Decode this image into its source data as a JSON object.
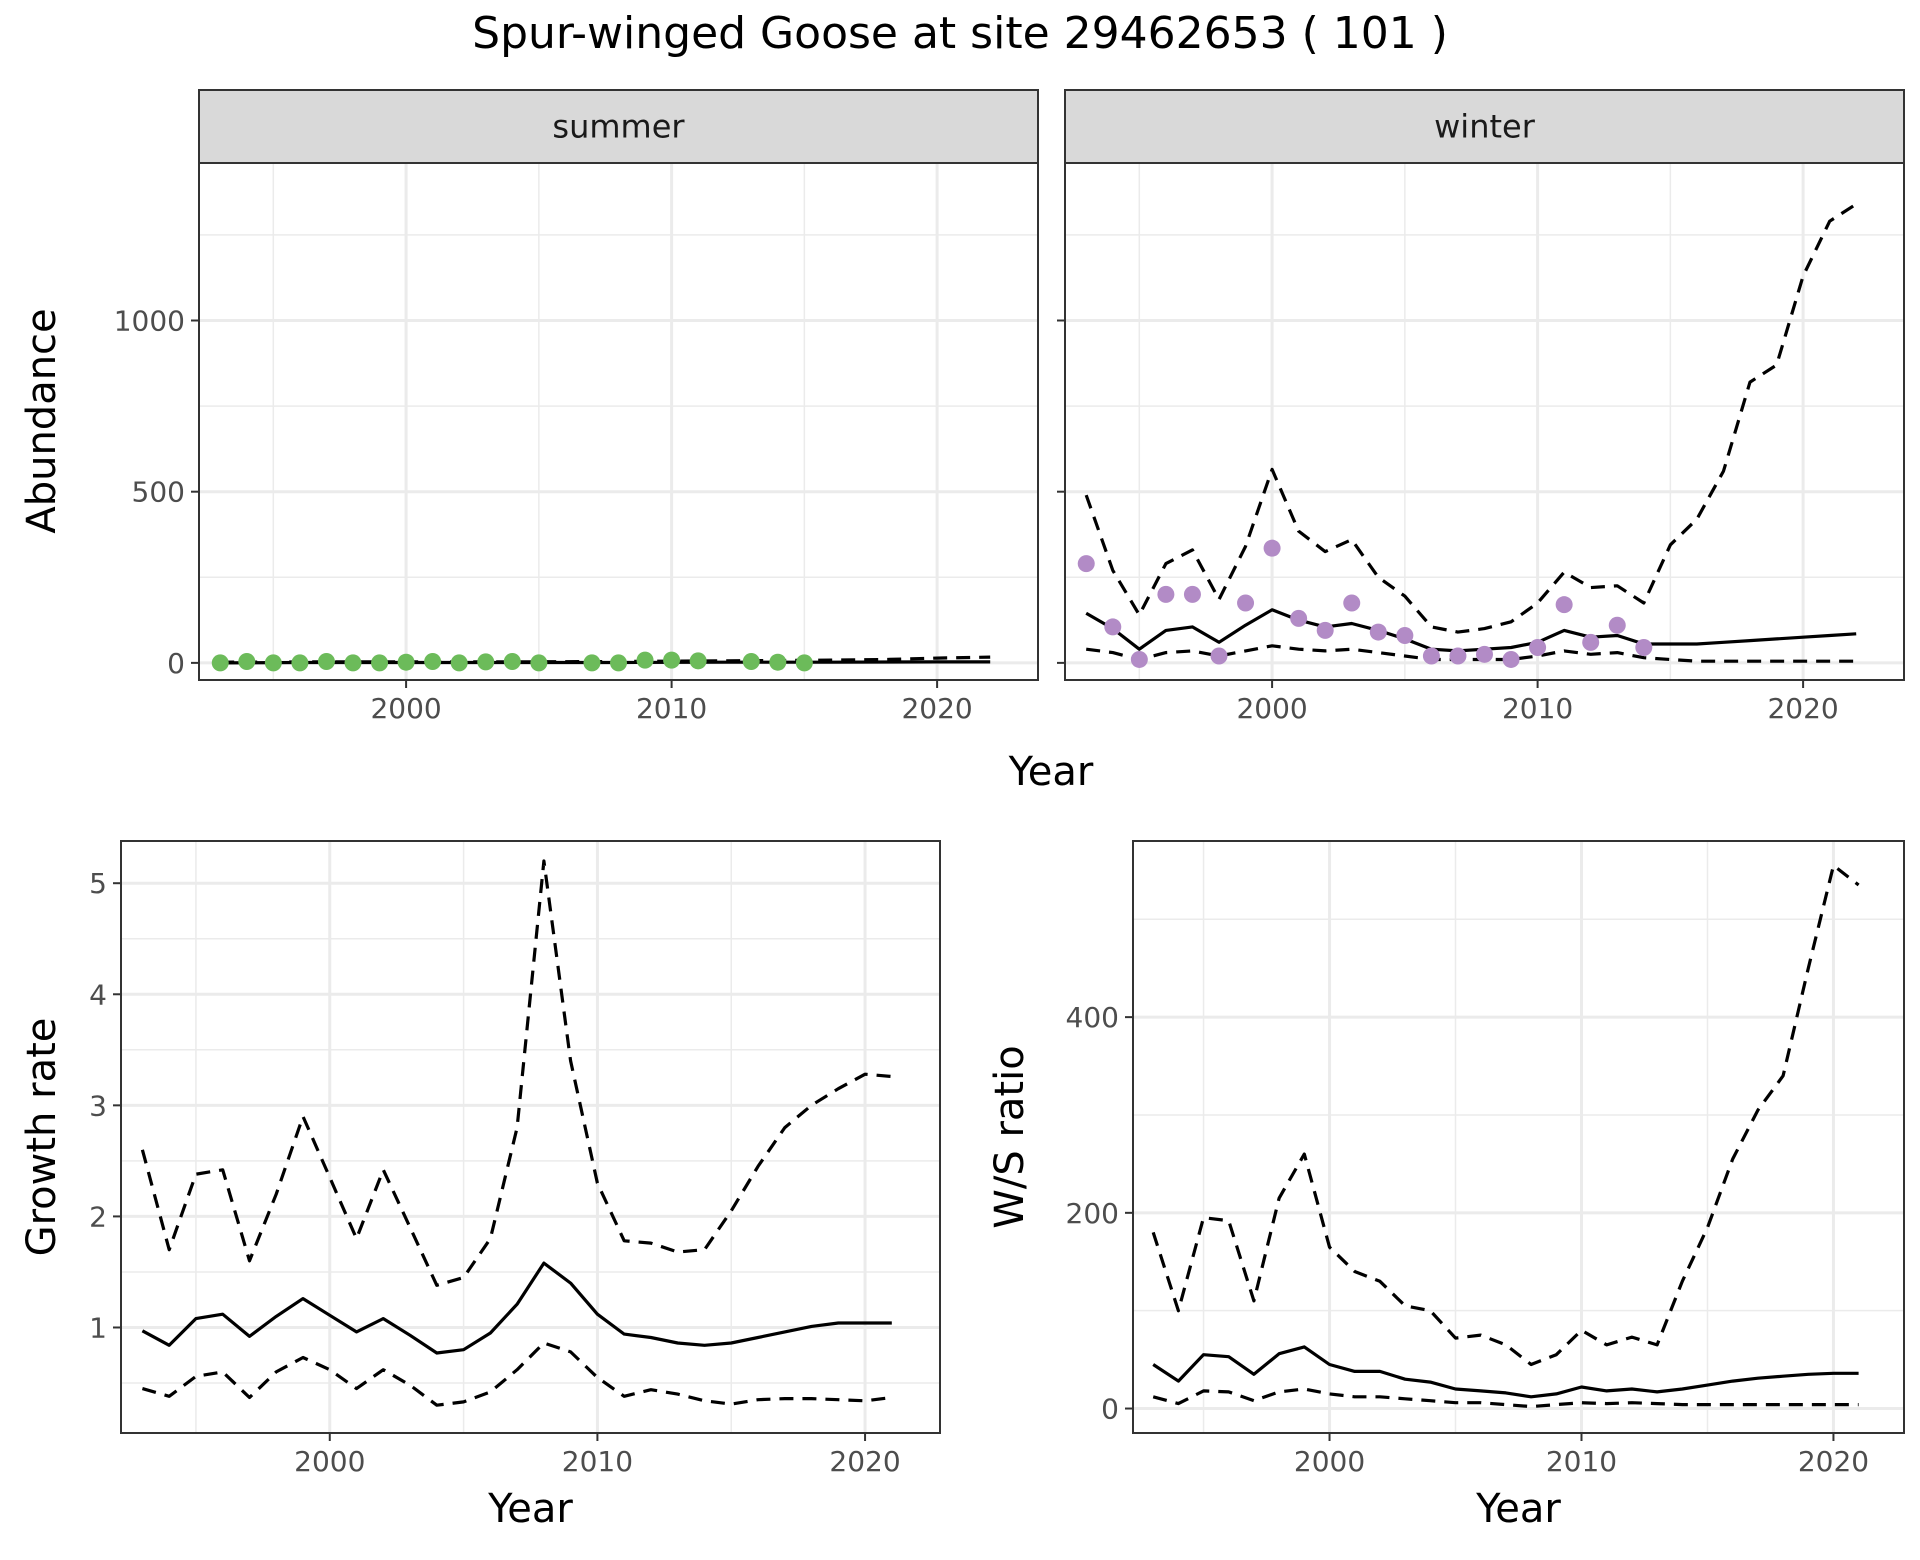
{
  "title": "Spur-winged Goose at site 29462653 ( 101 )",
  "colors": {
    "summer_points": "#6cbb5a",
    "winter_points": "#b28bc6",
    "line": "#000000",
    "strip_fill": "#d9d9d9",
    "grid": "#ebebeb"
  },
  "chart_data": [
    {
      "id": "summer",
      "type": "line",
      "facet_label": "summer",
      "ylabel": "Abundance",
      "xlabel": "",
      "xlim": [
        1992.2,
        2023.8
      ],
      "ylim": [
        -50,
        1460
      ],
      "x_ticks": [
        2000,
        2010,
        2020
      ],
      "y_ticks": [
        0,
        500,
        1000
      ],
      "y_tick_labels": true,
      "grid": true,
      "points": {
        "x": [
          1993,
          1994,
          1995,
          1996,
          1997,
          1998,
          1999,
          2000,
          2001,
          2002,
          2003,
          2004,
          2005,
          2007,
          2008,
          2009,
          2010,
          2011,
          2013,
          2014,
          2015
        ],
        "y": [
          0,
          4,
          0,
          0,
          4,
          0,
          0,
          2,
          4,
          0,
          3,
          4,
          0,
          0,
          0,
          8,
          8,
          6,
          4,
          2,
          0
        ]
      },
      "series": [
        {
          "style": "solid",
          "x": [
            1993,
            1996,
            2000,
            2004,
            2008,
            2012,
            2016,
            2020,
            2022
          ],
          "y": [
            0,
            1,
            1,
            1,
            1,
            2,
            2,
            3,
            3
          ]
        },
        {
          "style": "dashed",
          "x": [
            1993,
            1996,
            2000,
            2004,
            2008,
            2010,
            2012,
            2014,
            2016,
            2018,
            2020,
            2022
          ],
          "y": [
            2,
            3,
            3,
            3,
            4,
            5,
            6,
            7,
            8,
            10,
            14,
            17
          ]
        }
      ]
    },
    {
      "id": "winter",
      "type": "line",
      "facet_label": "winter",
      "ylabel": "",
      "xlabel": "",
      "xlim": [
        1992.2,
        2023.8
      ],
      "ylim": [
        -50,
        1460
      ],
      "x_ticks": [
        2000,
        2010,
        2020
      ],
      "y_ticks": [
        0,
        500,
        1000
      ],
      "y_tick_labels": false,
      "grid": true,
      "points": {
        "x": [
          1993,
          1994,
          1995,
          1996,
          1997,
          1998,
          1999,
          2000,
          2001,
          2002,
          2003,
          2004,
          2005,
          2006,
          2007,
          2008,
          2009,
          2010,
          2011,
          2012,
          2013,
          2014
        ],
        "y": [
          290,
          105,
          10,
          200,
          200,
          20,
          175,
          335,
          130,
          95,
          175,
          90,
          80,
          20,
          20,
          25,
          10,
          45,
          170,
          60,
          110,
          45
        ]
      },
      "series": [
        {
          "style": "solid",
          "x": [
            1993,
            1994,
            1995,
            1996,
            1997,
            1998,
            1999,
            2000,
            2001,
            2002,
            2003,
            2004,
            2005,
            2006,
            2007,
            2008,
            2009,
            2010,
            2011,
            2012,
            2013,
            2014,
            2015,
            2016,
            2017,
            2018,
            2019,
            2020,
            2021,
            2022
          ],
          "y": [
            145,
            100,
            40,
            95,
            105,
            60,
            110,
            155,
            125,
            105,
            115,
            95,
            70,
            40,
            35,
            40,
            45,
            60,
            95,
            75,
            80,
            55,
            55,
            55,
            60,
            65,
            70,
            75,
            80,
            85
          ]
        },
        {
          "style": "dashed",
          "x": [
            1993,
            1994,
            1995,
            1996,
            1997,
            1998,
            1999,
            2000,
            2001,
            2002,
            2003,
            2004,
            2005,
            2006,
            2007,
            2008,
            2009,
            2010,
            2011,
            2012,
            2013,
            2014,
            2015,
            2016,
            2017,
            2018,
            2019,
            2020,
            2021,
            2022
          ],
          "y": [
            490,
            270,
            140,
            290,
            330,
            185,
            340,
            565,
            385,
            325,
            360,
            250,
            195,
            105,
            90,
            100,
            120,
            175,
            265,
            220,
            225,
            175,
            345,
            420,
            560,
            820,
            870,
            1130,
            1290,
            1340
          ]
        },
        {
          "style": "dashed",
          "x": [
            1993,
            1994,
            1995,
            1996,
            1997,
            1998,
            1999,
            2000,
            2001,
            2002,
            2003,
            2004,
            2005,
            2006,
            2007,
            2008,
            2009,
            2010,
            2011,
            2012,
            2013,
            2014,
            2015,
            2016,
            2017,
            2018,
            2019,
            2020,
            2021,
            2022
          ],
          "y": [
            40,
            30,
            10,
            30,
            35,
            20,
            35,
            50,
            40,
            35,
            40,
            30,
            20,
            10,
            10,
            10,
            10,
            20,
            35,
            25,
            30,
            15,
            10,
            5,
            5,
            5,
            5,
            5,
            5,
            5
          ]
        }
      ]
    },
    {
      "id": "growth",
      "type": "line",
      "ylabel": "Growth rate",
      "xlabel": "Year",
      "xlim": [
        1992.2,
        2022.8
      ],
      "ylim": [
        0.05,
        5.38
      ],
      "x_ticks": [
        2000,
        2010,
        2020
      ],
      "y_ticks": [
        1,
        2,
        3,
        4,
        5
      ],
      "y_tick_labels": true,
      "grid": true,
      "series": [
        {
          "style": "solid",
          "x": [
            1993,
            1994,
            1995,
            1996,
            1997,
            1998,
            1999,
            2000,
            2001,
            2002,
            2003,
            2004,
            2005,
            2006,
            2007,
            2008,
            2009,
            2010,
            2011,
            2012,
            2013,
            2014,
            2015,
            2016,
            2017,
            2018,
            2019,
            2020,
            2021
          ],
          "y": [
            0.97,
            0.84,
            1.08,
            1.12,
            0.92,
            1.1,
            1.26,
            1.11,
            0.96,
            1.08,
            0.93,
            0.77,
            0.8,
            0.95,
            1.21,
            1.58,
            1.4,
            1.12,
            0.94,
            0.91,
            0.86,
            0.84,
            0.86,
            0.91,
            0.96,
            1.01,
            1.04,
            1.04,
            1.04
          ]
        },
        {
          "style": "dashed",
          "x": [
            1993,
            1994,
            1995,
            1996,
            1997,
            1998,
            1999,
            2000,
            2001,
            2002,
            2003,
            2004,
            2005,
            2006,
            2007,
            2008,
            2009,
            2010,
            2011,
            2012,
            2013,
            2014,
            2015,
            2016,
            2017,
            2018,
            2019,
            2020,
            2021
          ],
          "y": [
            2.6,
            1.7,
            2.38,
            2.42,
            1.6,
            2.2,
            2.9,
            2.35,
            1.8,
            2.42,
            1.9,
            1.38,
            1.45,
            1.8,
            2.8,
            5.2,
            3.4,
            2.3,
            1.78,
            1.76,
            1.68,
            1.7,
            2.05,
            2.45,
            2.8,
            3.0,
            3.15,
            3.28,
            3.26
          ]
        },
        {
          "style": "dashed",
          "x": [
            1993,
            1994,
            1995,
            1996,
            1997,
            1998,
            1999,
            2000,
            2001,
            2002,
            2003,
            2004,
            2005,
            2006,
            2007,
            2008,
            2009,
            2010,
            2011,
            2012,
            2013,
            2014,
            2015,
            2016,
            2017,
            2018,
            2019,
            2020,
            2021
          ],
          "y": [
            0.45,
            0.38,
            0.56,
            0.6,
            0.37,
            0.6,
            0.73,
            0.62,
            0.45,
            0.62,
            0.48,
            0.3,
            0.33,
            0.42,
            0.62,
            0.86,
            0.78,
            0.55,
            0.38,
            0.44,
            0.4,
            0.34,
            0.31,
            0.35,
            0.36,
            0.36,
            0.35,
            0.34,
            0.37
          ]
        }
      ]
    },
    {
      "id": "ratio",
      "type": "line",
      "ylabel": "W/S ratio",
      "xlabel": "Year",
      "xlim": [
        1992.2,
        2022.8
      ],
      "ylim": [
        -25,
        580
      ],
      "x_ticks": [
        2000,
        2010,
        2020
      ],
      "y_ticks": [
        0,
        200,
        400
      ],
      "y_tick_labels": true,
      "grid": true,
      "series": [
        {
          "style": "solid",
          "x": [
            1993,
            1994,
            1995,
            1996,
            1997,
            1998,
            1999,
            2000,
            2001,
            2002,
            2003,
            2004,
            2005,
            2006,
            2007,
            2008,
            2009,
            2010,
            2011,
            2012,
            2013,
            2014,
            2015,
            2016,
            2017,
            2018,
            2019,
            2020,
            2021
          ],
          "y": [
            45,
            28,
            55,
            53,
            35,
            56,
            63,
            45,
            38,
            38,
            30,
            27,
            20,
            18,
            16,
            12,
            15,
            22,
            18,
            20,
            17,
            20,
            24,
            28,
            31,
            33,
            35,
            36,
            36
          ]
        },
        {
          "style": "dashed",
          "x": [
            1993,
            1994,
            1995,
            1996,
            1997,
            1998,
            1999,
            2000,
            2001,
            2002,
            2003,
            2004,
            2005,
            2006,
            2007,
            2008,
            2009,
            2010,
            2011,
            2012,
            2013,
            2014,
            2015,
            2016,
            2017,
            2018,
            2019,
            2020,
            2021
          ],
          "y": [
            180,
            100,
            195,
            192,
            110,
            215,
            260,
            165,
            140,
            130,
            105,
            100,
            72,
            75,
            65,
            45,
            55,
            80,
            65,
            73,
            65,
            130,
            185,
            255,
            305,
            340,
            450,
            555,
            535
          ]
        },
        {
          "style": "dashed",
          "x": [
            1993,
            1994,
            1995,
            1996,
            1997,
            1998,
            1999,
            2000,
            2001,
            2002,
            2003,
            2004,
            2005,
            2006,
            2007,
            2008,
            2009,
            2010,
            2011,
            2012,
            2013,
            2014,
            2015,
            2016,
            2017,
            2018,
            2019,
            2020,
            2021
          ],
          "y": [
            12,
            5,
            18,
            17,
            8,
            17,
            20,
            15,
            12,
            12,
            10,
            8,
            6,
            6,
            4,
            2,
            4,
            6,
            5,
            6,
            5,
            4,
            4,
            4,
            4,
            4,
            4,
            4,
            4
          ]
        }
      ]
    }
  ]
}
